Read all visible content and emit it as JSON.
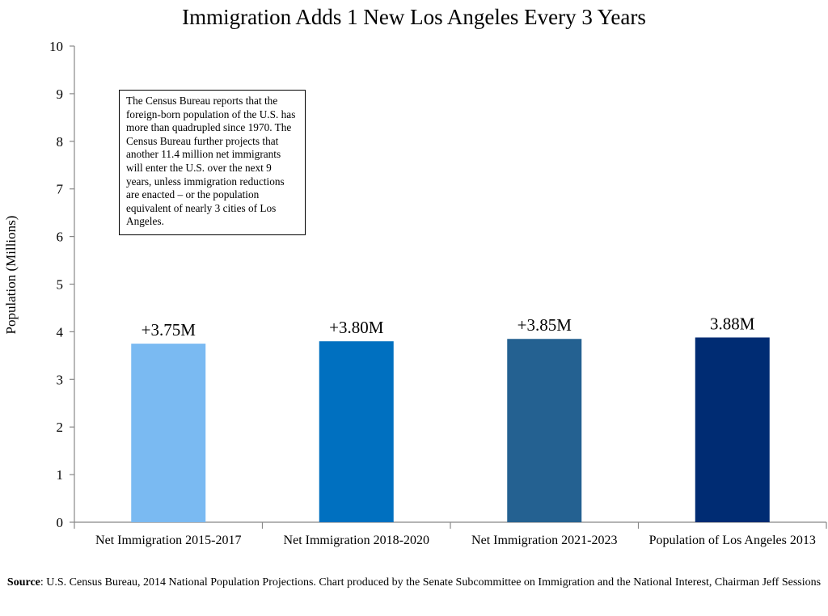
{
  "chart_data": {
    "type": "bar",
    "title": "Immigration Adds 1 New Los Angeles Every 3 Years",
    "xlabel": "",
    "ylabel": "Population (Millions)",
    "ylim": [
      0,
      10
    ],
    "yticks": [
      0,
      1,
      2,
      3,
      4,
      5,
      6,
      7,
      8,
      9,
      10
    ],
    "grid": false,
    "categories": [
      "Net Immigration 2015-2017",
      "Net Immigration 2018-2020",
      "Net Immigration 2021-2023",
      "Population of Los Angeles 2013"
    ],
    "values": [
      3.75,
      3.8,
      3.85,
      3.88
    ],
    "data_labels": [
      "+3.75M",
      "+3.80M",
      "+3.85M",
      "3.88M"
    ],
    "colors": [
      "#7abaf2",
      "#0070c0",
      "#246191",
      "#002c73"
    ],
    "annotation": "The Census Bureau reports that the foreign-born population of the U.S. has more than quadrupled since 1970.  The Census Bureau further projects that another 11.4 million net immigrants will enter the U.S. over the next 9 years, unless immigration reductions are enacted – or the population equivalent of nearly 3 cities of Los Angeles."
  },
  "source": {
    "label": "Source",
    "text": ": U.S. Census Bureau, 2014 National Population Projections. Chart produced by the Senate Subcommittee on Immigration and the National Interest, Chairman  Jeff Sessions"
  }
}
